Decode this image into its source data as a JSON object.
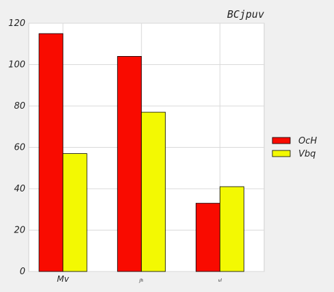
{
  "chart_data": {
    "type": "bar",
    "title": "BCjpuv",
    "categories": [
      "Mv",
      "Jh",
      "vl"
    ],
    "series": [
      {
        "name": "OcH",
        "values": [
          115,
          104,
          33
        ],
        "color": "#f90b00"
      },
      {
        "name": "Vbq",
        "values": [
          57,
          77,
          41
        ],
        "color": "#f3f902"
      }
    ],
    "ylim": [
      0,
      120
    ],
    "yticks": [
      0,
      20,
      40,
      60,
      80,
      100,
      120
    ],
    "grid": true,
    "legend": "right",
    "xlabel": "",
    "ylabel": ""
  }
}
